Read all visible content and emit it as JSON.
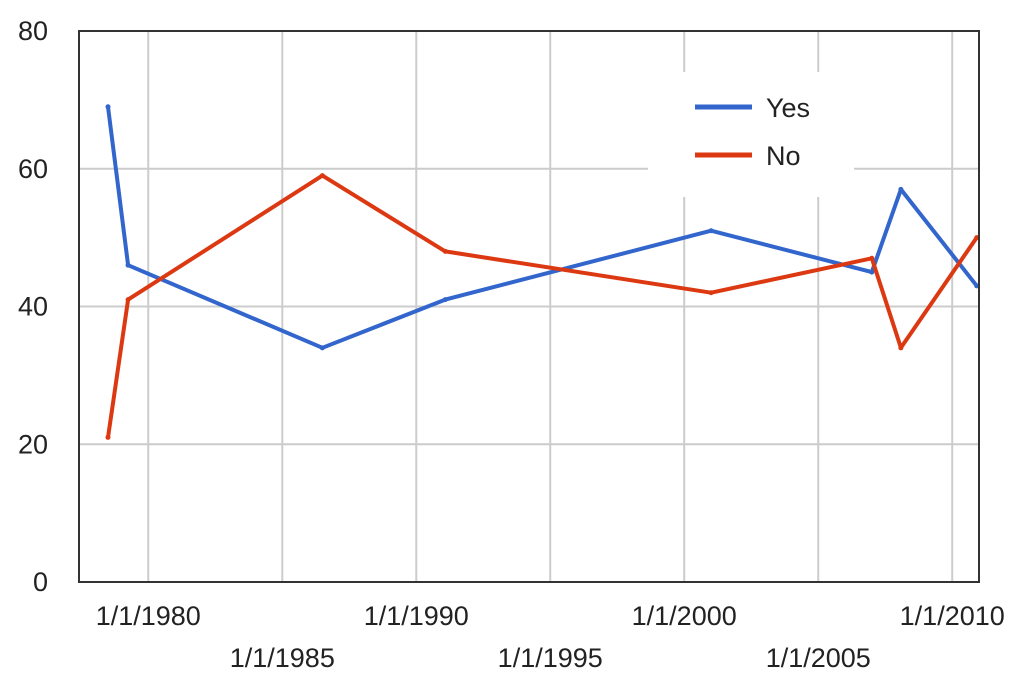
{
  "chart_data": {
    "type": "line",
    "x": [
      "1978-07-01",
      "1979-04-01",
      "1986-07-01",
      "1991-02-01",
      "2001-01-01",
      "2007-01-01",
      "2008-02-01",
      "2010-12-01"
    ],
    "series": [
      {
        "name": "Yes",
        "color": "#3366cc",
        "values": [
          69,
          46,
          34,
          41,
          51,
          45,
          57,
          43
        ]
      },
      {
        "name": "No",
        "color": "#dc3912",
        "values": [
          21,
          41,
          59,
          48,
          42,
          47,
          34,
          50
        ]
      }
    ],
    "xlim": [
      "1977-06-01",
      "2011-01-01"
    ],
    "ylim": [
      0,
      80
    ],
    "y_ticks": [
      0,
      20,
      40,
      60,
      80
    ],
    "x_ticks": [
      "1/1/1980",
      "1/1/1985",
      "1/1/1990",
      "1/1/1995",
      "1/1/2000",
      "1/1/2005",
      "1/1/2010"
    ],
    "grid": true,
    "legend_position": "top-right",
    "title": "",
    "xlabel": "",
    "ylabel": ""
  }
}
